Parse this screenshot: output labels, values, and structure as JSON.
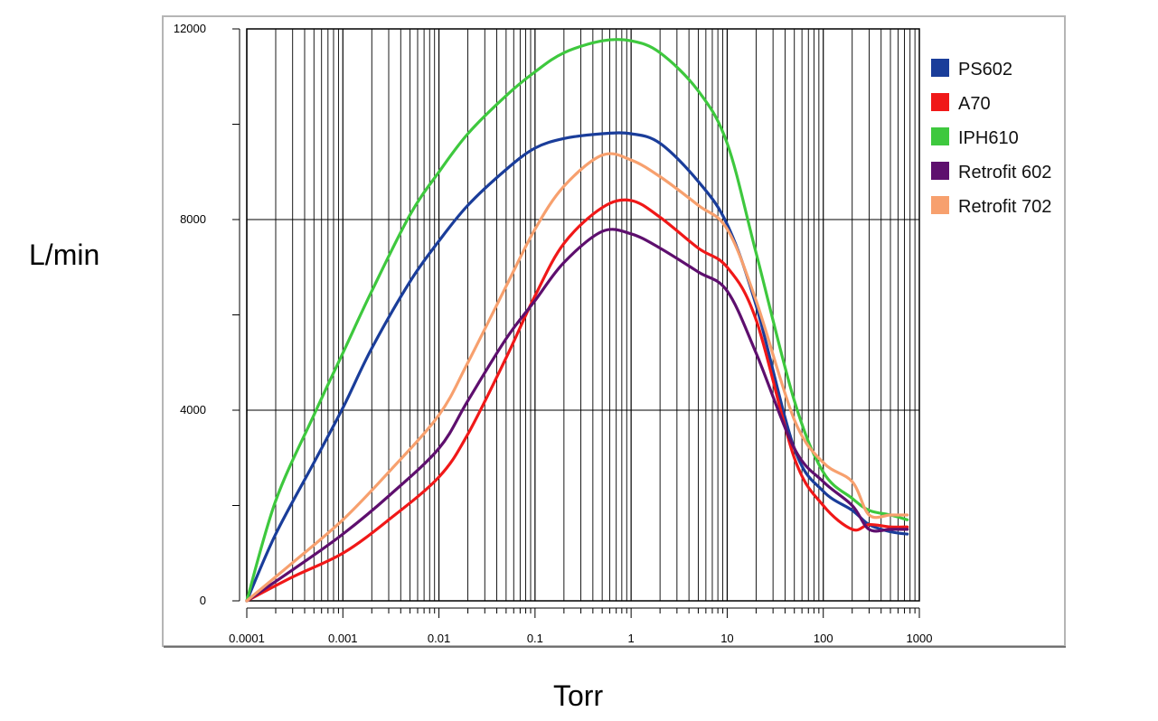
{
  "chart_data": {
    "type": "line",
    "xscale": "log",
    "xlabel": "Torr",
    "ylabel": "L/min",
    "xlim": [
      0.0001,
      1000
    ],
    "ylim": [
      0,
      12000
    ],
    "x_tick_labels": [
      "0.0001",
      "0.001",
      "0.01",
      "0.1",
      "1",
      "10",
      "100",
      "1000"
    ],
    "y_tick_labels": [
      "0",
      "4000",
      "8000",
      "12000"
    ],
    "grid": true,
    "legend_position": "right",
    "series": [
      {
        "name": "PS602",
        "color": "#1a3d9a",
        "x": [
          0.0001,
          0.0002,
          0.0005,
          0.001,
          0.002,
          0.005,
          0.01,
          0.02,
          0.05,
          0.1,
          0.2,
          0.5,
          1,
          2,
          5,
          10,
          20,
          50,
          100,
          200,
          300,
          500,
          750
        ],
        "y": [
          0,
          1400,
          2900,
          4050,
          5300,
          6700,
          7550,
          8300,
          9050,
          9500,
          9700,
          9800,
          9800,
          9600,
          8800,
          7900,
          6200,
          3200,
          2300,
          1900,
          1600,
          1450,
          1400
        ]
      },
      {
        "name": "A70",
        "color": "#f01818",
        "x": [
          0.0001,
          0.0003,
          0.001,
          0.003,
          0.01,
          0.02,
          0.05,
          0.1,
          0.2,
          0.5,
          1,
          2,
          5,
          10,
          20,
          50,
          100,
          200,
          300,
          500,
          750
        ],
        "y": [
          0,
          500,
          1000,
          1700,
          2600,
          3500,
          5100,
          6400,
          7500,
          8250,
          8400,
          8050,
          7400,
          7000,
          5900,
          3000,
          2000,
          1500,
          1600,
          1550,
          1550
        ]
      },
      {
        "name": "IPH610",
        "color": "#3ec83e",
        "x": [
          0.0001,
          0.0002,
          0.0005,
          0.001,
          0.002,
          0.005,
          0.01,
          0.02,
          0.05,
          0.1,
          0.2,
          0.5,
          1,
          2,
          5,
          10,
          20,
          50,
          100,
          200,
          300,
          500,
          750
        ],
        "y": [
          0,
          2100,
          3900,
          5200,
          6500,
          8100,
          9000,
          9800,
          10600,
          11100,
          11500,
          11750,
          11750,
          11500,
          10700,
          9600,
          7300,
          4200,
          2700,
          2150,
          1900,
          1800,
          1700
        ]
      },
      {
        "name": "Retrofit 602",
        "color": "#5e0f6e",
        "x": [
          0.0001,
          0.0003,
          0.001,
          0.003,
          0.01,
          0.02,
          0.05,
          0.1,
          0.2,
          0.5,
          1,
          2,
          5,
          10,
          20,
          50,
          100,
          200,
          300,
          500,
          750
        ],
        "y": [
          0,
          650,
          1400,
          2200,
          3200,
          4200,
          5500,
          6300,
          7100,
          7750,
          7700,
          7400,
          6900,
          6500,
          5200,
          3200,
          2500,
          2000,
          1500,
          1500,
          1500
        ]
      },
      {
        "name": "Retrofit 702",
        "color": "#f7a06e",
        "x": [
          0.0001,
          0.0003,
          0.001,
          0.003,
          0.01,
          0.02,
          0.05,
          0.1,
          0.2,
          0.5,
          1,
          2,
          5,
          10,
          20,
          50,
          100,
          200,
          300,
          500,
          750
        ],
        "y": [
          0,
          800,
          1700,
          2700,
          3900,
          5000,
          6600,
          7800,
          8700,
          9350,
          9250,
          8900,
          8300,
          7800,
          6300,
          3800,
          2900,
          2500,
          1800,
          1800,
          1800
        ]
      }
    ]
  }
}
